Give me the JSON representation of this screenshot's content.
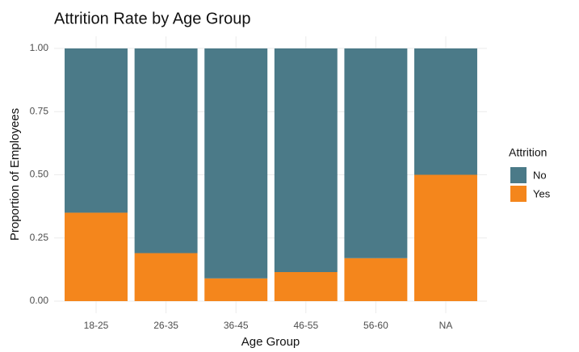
{
  "chart_data": {
    "type": "bar",
    "stacked": true,
    "title": "Attrition Rate by Age Group",
    "x_label": "Age Group",
    "y_label": "Proportion of Employees",
    "categories": [
      "18-25",
      "26-35",
      "36-45",
      "46-55",
      "56-60",
      "NA"
    ],
    "legend_title": "Attrition",
    "legend_position": "right",
    "series": [
      {
        "name": "No",
        "color": "#4b7a88",
        "values": [
          0.65,
          0.81,
          0.91,
          0.885,
          0.83,
          0.5
        ]
      },
      {
        "name": "Yes",
        "color": "#f4861c",
        "values": [
          0.35,
          0.19,
          0.09,
          0.115,
          0.17,
          0.5
        ]
      }
    ],
    "ylim": [
      0,
      1
    ],
    "yticks": [
      {
        "value": 0,
        "label": "0.00"
      },
      {
        "value": 0.25,
        "label": "0.25"
      },
      {
        "value": 0.5,
        "label": "0.50"
      },
      {
        "value": 0.75,
        "label": "0.75"
      },
      {
        "value": 1,
        "label": "1.00"
      }
    ],
    "grid": true
  }
}
